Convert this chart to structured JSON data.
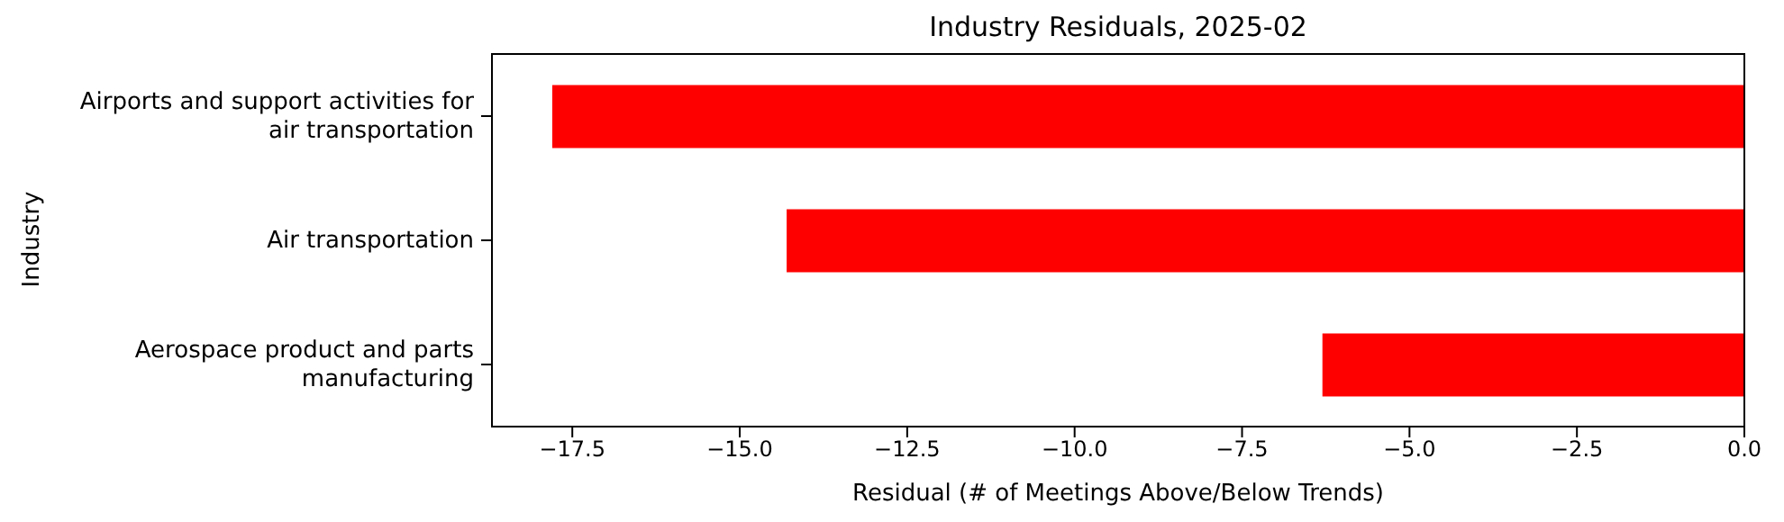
{
  "chart_data": {
    "type": "bar",
    "orientation": "horizontal",
    "title": "Industry Residuals, 2025-02",
    "xlabel": "Residual (# of Meetings Above/Below Trends)",
    "ylabel": "Industry",
    "categories": [
      "Airports and support activities for\nair transportation",
      "Air transportation",
      "Aerospace product and parts\nmanufacturing"
    ],
    "values": [
      -17.8,
      -14.3,
      -6.3
    ],
    "color": "#ff0000",
    "xlim": [
      -18.7,
      0
    ],
    "xticks": [
      {
        "value": -17.5,
        "label": "−17.5"
      },
      {
        "value": -15,
        "label": "−15.0"
      },
      {
        "value": -12.5,
        "label": "−12.5"
      },
      {
        "value": -10,
        "label": "−10.0"
      },
      {
        "value": -7.5,
        "label": "−7.5"
      },
      {
        "value": -5,
        "label": "−5.0"
      },
      {
        "value": -2.5,
        "label": "−2.5"
      },
      {
        "value": 0,
        "label": "0.0"
      }
    ],
    "grid": false,
    "legend": false
  }
}
